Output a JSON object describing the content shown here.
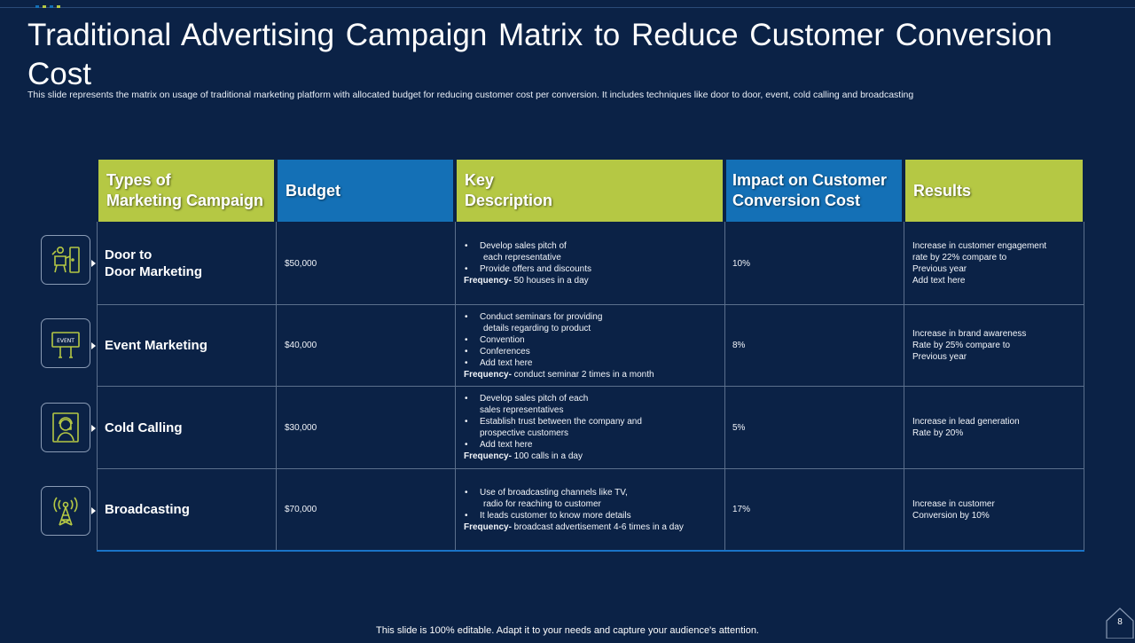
{
  "slide": {
    "title": "Traditional Advertising Campaign Matrix to Reduce Customer Conversion Cost",
    "subtitle": "This slide represents the matrix on usage of traditional marketing platform with allocated budget for reducing customer cost per conversion. It includes techniques like door to door, event, cold calling and broadcasting",
    "footer": "This slide is 100% editable. Adapt it to your needs and capture your audience's attention.",
    "page_number": "8"
  },
  "colors": {
    "background": "#0b2246",
    "green_header": "#b5c844",
    "blue_header": "#1470b6",
    "icon_accent": "#b5c844"
  },
  "table": {
    "headers": {
      "type_line1": "Types of",
      "type_line2": "Marketing Campaign",
      "budget": "Budget",
      "desc_line1": "Key",
      "desc_line2": "Description",
      "impact_line1": "Impact on Customer",
      "impact_line2": "Conversion Cost",
      "results": "Results"
    },
    "rows": [
      {
        "icon": "door-to-door-icon",
        "name_line1": "Door to",
        "name_line2": "Door Marketing",
        "budget": "$50,000",
        "b1": "Develop sales pitch of",
        "b1c": "each representative",
        "b2": "Provide offers and discounts",
        "freq_label": "Frequency-",
        "freq_text": " 50 houses in a day",
        "impact": "10%",
        "r1": "Increase in customer engagement",
        "r2": "rate by 22% compare to",
        "r3": "Previous year",
        "r4": "Add text here"
      },
      {
        "icon": "event-sign-icon",
        "icon_text": "EVENT",
        "name_line1": "Event Marketing",
        "budget": "$40,000",
        "b1": "Conduct seminars for providing",
        "b1c": "details regarding to product",
        "b2": "Convention",
        "b3": "Conferences",
        "b4": "Add text here",
        "freq_label": "Frequency-",
        "freq_text": " conduct seminar 2 times in a month",
        "impact": "8%",
        "r1": "Increase in brand awareness",
        "r2": "Rate by 25% compare to",
        "r3": "Previous year"
      },
      {
        "icon": "call-agent-icon",
        "name_line1": "Cold Calling",
        "budget": "$30,000",
        "b1": "Develop sales pitch of each",
        "b1c": "sales representatives",
        "b2": "Establish trust between the company and",
        "b2c": "prospective customers",
        "b3": "Add text here",
        "freq_label": "Frequency-",
        "freq_text": " 100 calls in a day",
        "impact": "5%",
        "r1": "Increase in lead generation",
        "r2": "Rate by 20%"
      },
      {
        "icon": "broadcast-tower-icon",
        "name_line1": "Broadcasting",
        "budget": "$70,000",
        "b1": "Use of broadcasting channels like TV,",
        "b1c": "radio for reaching to customer",
        "b2": "It leads customer to know more details",
        "freq_label": "Frequency-",
        "freq_text": " broadcast advertisement 4-6 times in a day",
        "impact": "17%",
        "r1": "Increase in customer",
        "r2": "Conversion by 10%"
      }
    ]
  }
}
